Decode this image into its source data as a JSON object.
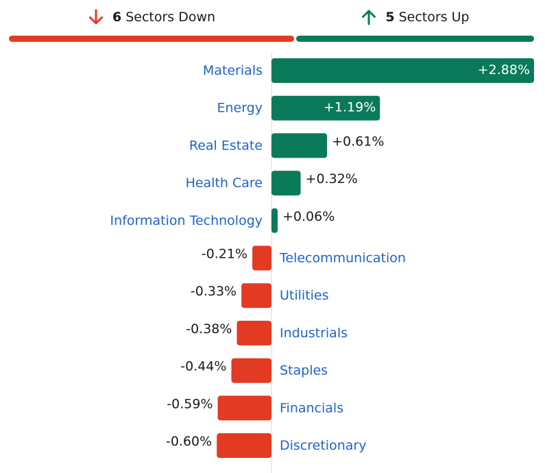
{
  "summary": {
    "down": {
      "count": "6",
      "label": "Sectors Down",
      "icon": "arrow-down-icon"
    },
    "up": {
      "count": "5",
      "label": "Sectors Up",
      "icon": "arrow-up-icon"
    }
  },
  "colors": {
    "positive": "#0b7a5a",
    "negative": "#e33a24",
    "label": "#1f63c9",
    "axis": "#d8d8d8",
    "value_text": "#1a1a1a",
    "value_text_inside": "#ffffff"
  },
  "chart_data": {
    "type": "bar",
    "orientation": "horizontal",
    "title": "",
    "xlabel": "",
    "ylabel": "",
    "categories": [
      "Materials",
      "Energy",
      "Real Estate",
      "Health Care",
      "Information Technology",
      "Telecommunication",
      "Utilities",
      "Industrials",
      "Staples",
      "Financials",
      "Discretionary"
    ],
    "values": [
      2.88,
      1.19,
      0.61,
      0.32,
      0.06,
      -0.21,
      -0.33,
      -0.38,
      -0.44,
      -0.59,
      -0.6
    ],
    "value_labels": [
      "+2.88%",
      "+1.19%",
      "+0.61%",
      "+0.32%",
      "+0.06%",
      "-0.21%",
      "-0.33%",
      "-0.38%",
      "-0.44%",
      "-0.59%",
      "-0.60%"
    ],
    "unit": "%",
    "grid": false,
    "legend": "none"
  }
}
